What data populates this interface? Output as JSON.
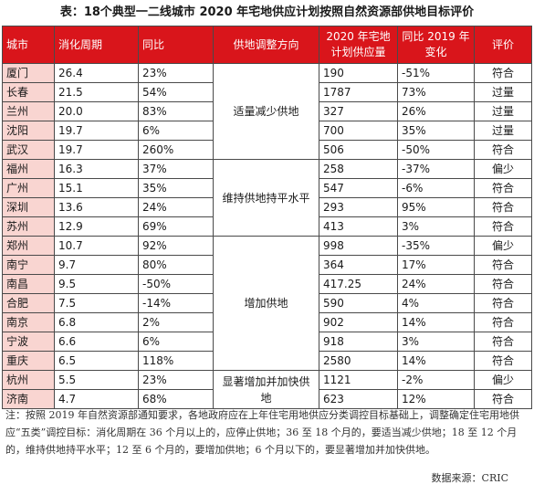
{
  "title": "表：18个典型一二线城市 2020 年宅地供应计划按照自然资源部供地目标评价",
  "headers": {
    "city": "城市",
    "cycle": "消化周期",
    "yoy": "同比",
    "direction": "供地调整方向",
    "supply_2020": "2020 年宅地计划供应量",
    "change_vs_2019": "同比 2019 年变化",
    "rating": "评价"
  },
  "directions": [
    "适量减少供地",
    "维持供地持平水平",
    "增加供地",
    "显著增加并加快供地"
  ],
  "rows": [
    {
      "city": "厦门",
      "cycle": "26.4",
      "yoy": "23%",
      "supply": "190",
      "change": "-51%",
      "rating": "符合"
    },
    {
      "city": "长春",
      "cycle": "21.5",
      "yoy": "54%",
      "supply": "1787",
      "change": "73%",
      "rating": "过量"
    },
    {
      "city": "兰州",
      "cycle": "20.0",
      "yoy": "83%",
      "supply": "327",
      "change": "26%",
      "rating": "过量"
    },
    {
      "city": "沈阳",
      "cycle": "19.7",
      "yoy": "6%",
      "supply": "700",
      "change": "35%",
      "rating": "过量"
    },
    {
      "city": "武汉",
      "cycle": "19.7",
      "yoy": "260%",
      "supply": "506",
      "change": "-50%",
      "rating": "符合"
    },
    {
      "city": "福州",
      "cycle": "16.3",
      "yoy": "37%",
      "supply": "258",
      "change": "-37%",
      "rating": "偏少"
    },
    {
      "city": "广州",
      "cycle": "15.1",
      "yoy": "35%",
      "supply": "547",
      "change": "-6%",
      "rating": "符合"
    },
    {
      "city": "深圳",
      "cycle": "13.6",
      "yoy": "24%",
      "supply": "293",
      "change": "95%",
      "rating": "符合"
    },
    {
      "city": "苏州",
      "cycle": "12.9",
      "yoy": "69%",
      "supply": "413",
      "change": "3%",
      "rating": "符合"
    },
    {
      "city": "郑州",
      "cycle": "10.7",
      "yoy": "92%",
      "supply": "998",
      "change": "-35%",
      "rating": "偏少"
    },
    {
      "city": "南宁",
      "cycle": "9.7",
      "yoy": "80%",
      "supply": "364",
      "change": "17%",
      "rating": "符合"
    },
    {
      "city": "南昌",
      "cycle": "9.5",
      "yoy": "-50%",
      "supply": "417.25",
      "change": "24%",
      "rating": "符合"
    },
    {
      "city": "合肥",
      "cycle": "7.5",
      "yoy": "-14%",
      "supply": "590",
      "change": "4%",
      "rating": "符合"
    },
    {
      "city": "南京",
      "cycle": "6.8",
      "yoy": "2%",
      "supply": "902",
      "change": "14%",
      "rating": "符合"
    },
    {
      "city": "宁波",
      "cycle": "6.6",
      "yoy": "6%",
      "supply": "918",
      "change": "3%",
      "rating": "符合"
    },
    {
      "city": "重庆",
      "cycle": "6.5",
      "yoy": "118%",
      "supply": "2580",
      "change": "14%",
      "rating": "符合"
    },
    {
      "city": "杭州",
      "cycle": "5.5",
      "yoy": "23%",
      "supply": "1121",
      "change": "-2%",
      "rating": "偏少"
    },
    {
      "city": "济南",
      "cycle": "4.7",
      "yoy": "68%",
      "supply": "623",
      "change": "12%",
      "rating": "符合"
    }
  ],
  "note": "注：按照 2019 年自然资源部通知要求，各地政府应在上年住宅用地供应分类调控目标基础上，调整确定住宅用地供应“五类”调控目标：消化周期在 36 个月以上的，应停止供地；36 至 18 个月的，要适当减少供地；18 至 12 个月的，维持供地持平水平；12 至 6 个月的，要增加供地；6 个月以下的，要显著增加并加快供地。",
  "source": "数据来源：CRIC"
}
